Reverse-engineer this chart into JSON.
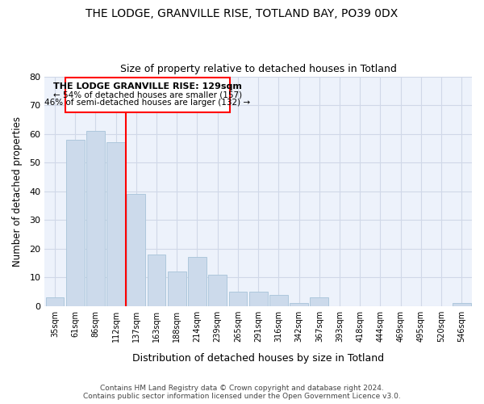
{
  "title": "THE LODGE, GRANVILLE RISE, TOTLAND BAY, PO39 0DX",
  "subtitle": "Size of property relative to detached houses in Totland",
  "xlabel": "Distribution of detached houses by size in Totland",
  "ylabel": "Number of detached properties",
  "categories": [
    "35sqm",
    "61sqm",
    "86sqm",
    "112sqm",
    "137sqm",
    "163sqm",
    "188sqm",
    "214sqm",
    "239sqm",
    "265sqm",
    "291sqm",
    "316sqm",
    "342sqm",
    "367sqm",
    "393sqm",
    "418sqm",
    "444sqm",
    "469sqm",
    "495sqm",
    "520sqm",
    "546sqm"
  ],
  "values": [
    3,
    58,
    61,
    57,
    39,
    18,
    12,
    17,
    11,
    5,
    5,
    4,
    1,
    3,
    0,
    0,
    0,
    0,
    0,
    0,
    1
  ],
  "bar_color": "#ccdaeb",
  "bar_edge_color": "#aec8dc",
  "bar_linewidth": 0.7,
  "vline_index": 4,
  "vline_color": "red",
  "annotation_title": "THE LODGE GRANVILLE RISE: 129sqm",
  "annotation_line1": "← 54% of detached houses are smaller (157)",
  "annotation_line2": "46% of semi-detached houses are larger (132) →",
  "ylim": [
    0,
    80
  ],
  "yticks": [
    0,
    10,
    20,
    30,
    40,
    50,
    60,
    70,
    80
  ],
  "grid_color": "#d0d8e8",
  "background_color": "#edf2fb",
  "footer_line1": "Contains HM Land Registry data © Crown copyright and database right 2024.",
  "footer_line2": "Contains public sector information licensed under the Open Government Licence v3.0."
}
